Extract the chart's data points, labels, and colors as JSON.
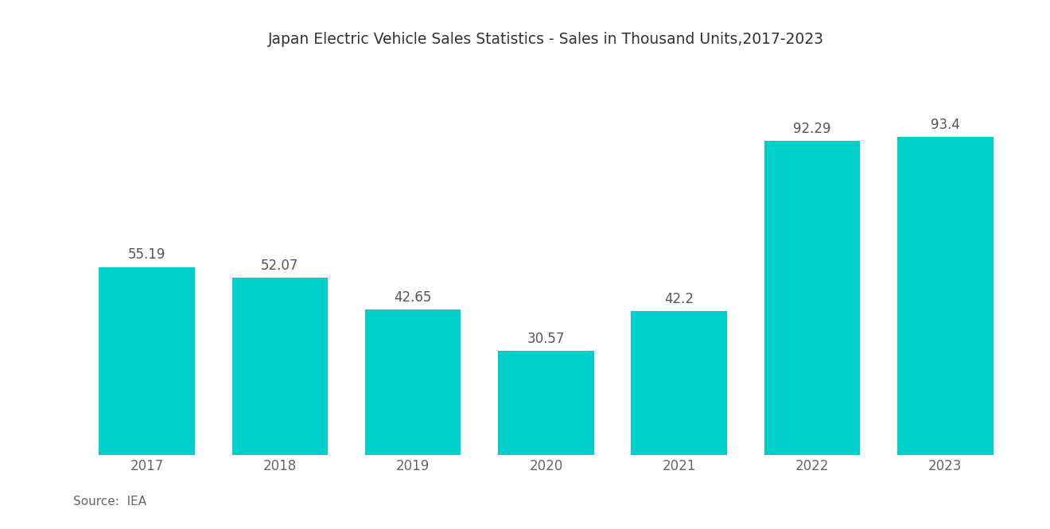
{
  "title": "Japan Electric Vehicle Sales Statistics - Sales in Thousand Units,2017-2023",
  "categories": [
    "2017",
    "2018",
    "2019",
    "2020",
    "2021",
    "2022",
    "2023"
  ],
  "values": [
    55.19,
    52.07,
    42.65,
    30.57,
    42.2,
    92.29,
    93.4
  ],
  "bar_color": "#00CEC9",
  "background_color": "#ffffff",
  "title_fontsize": 13.5,
  "label_fontsize": 12,
  "tick_fontsize": 12,
  "source_text": "Source:  IEA",
  "ylim": [
    0,
    115
  ],
  "bar_width": 0.72
}
